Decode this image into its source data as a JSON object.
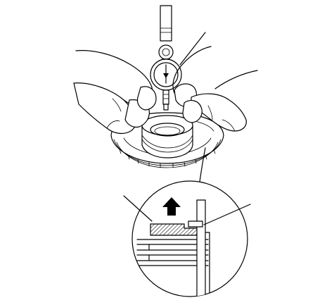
{
  "figure": {
    "icons": {
      "dial_indicator": "dial-indicator-icon",
      "hands": "hands-icon",
      "gear_assembly": "clutch-drum-assembly-icon",
      "detail": "magnified-detail-icon",
      "arrow": "lift-up-arrow-icon"
    },
    "colors": {
      "line": "#000000",
      "background": "#ffffff",
      "hatch": "#000000"
    }
  }
}
